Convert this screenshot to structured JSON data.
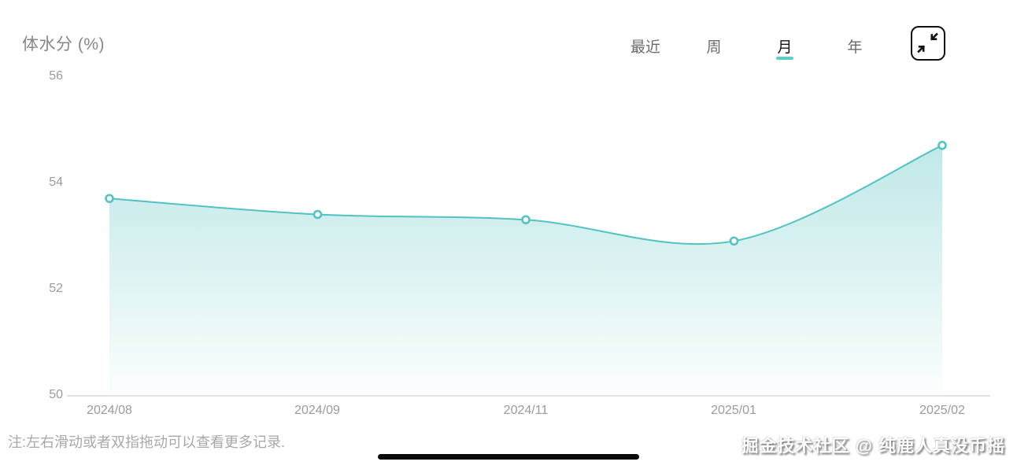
{
  "header": {
    "title": "体水分 (%)",
    "tabs": [
      {
        "label": "最近",
        "active": false
      },
      {
        "label": "周",
        "active": false
      },
      {
        "label": "月",
        "active": true
      },
      {
        "label": "年",
        "active": false
      }
    ]
  },
  "chart_data": {
    "type": "area",
    "title": "体水分 (%)",
    "categories": [
      "2024/08",
      "2024/09",
      "2024/11",
      "2025/01",
      "2025/02"
    ],
    "values": [
      53.7,
      53.4,
      53.3,
      52.9,
      54.7
    ],
    "ylim": [
      50,
      56
    ],
    "yticks": [
      "56",
      "54",
      "52",
      "50"
    ],
    "grid": false,
    "legend": false,
    "line_color": "#52c2c2",
    "fill_top": "rgba(95,199,196,0.40)",
    "fill_bottom": "rgba(95,199,196,0.02)",
    "point_style": "open-circle",
    "axis_color": "#d9d9d9"
  },
  "footer": {
    "note": "注:左右滑动或者双指拖动可以查看更多记录.",
    "watermark": "掘金技术社区 @ 纯鹿人真没币摇"
  },
  "colors": {
    "accent": "#52c2c2",
    "tab_underline": "#5dccc7",
    "title_gray": "#878787",
    "tick_gray": "#9b9b9b"
  }
}
